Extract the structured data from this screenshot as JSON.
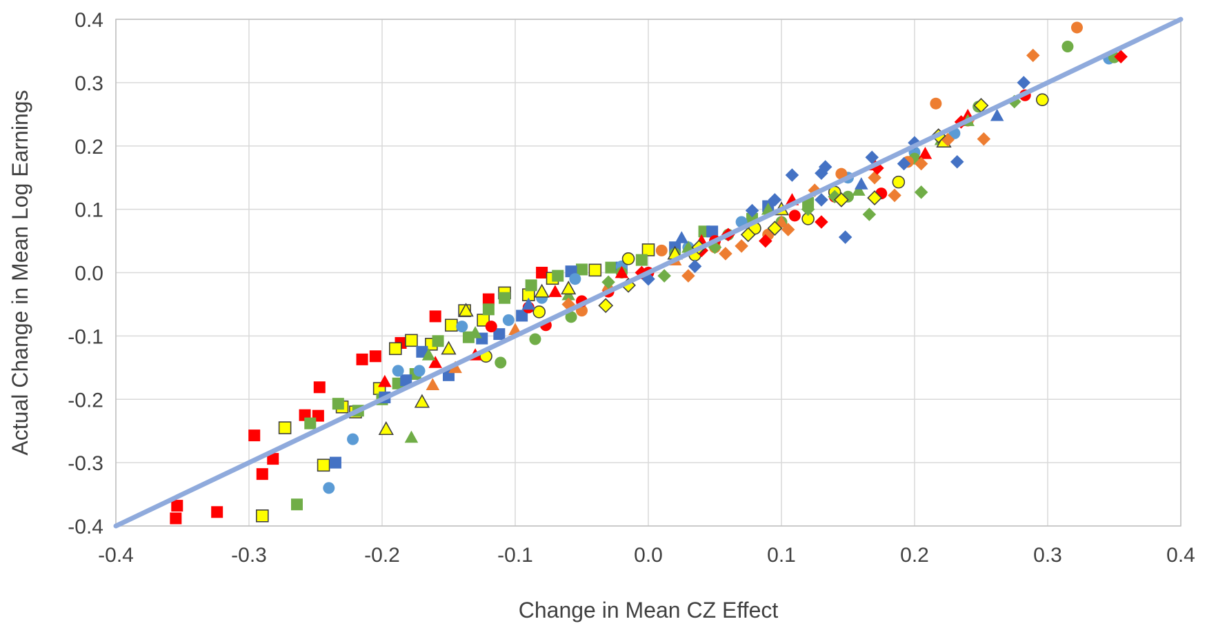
{
  "chart_data": {
    "type": "scatter",
    "title": "",
    "xlabel": "Change in Mean CZ Effect",
    "ylabel": "Actual Change in Mean Log Earnings",
    "xlim": [
      -0.4,
      0.4
    ],
    "ylim": [
      -0.4,
      0.4
    ],
    "x_ticks": [
      "-0.4",
      "-0.3",
      "-0.2",
      "-0.1",
      "0.0",
      "0.1",
      "0.2",
      "0.3",
      "0.4"
    ],
    "y_ticks": [
      "-0.4",
      "-0.3",
      "-0.2",
      "-0.1",
      "0.0",
      "0.1",
      "0.2",
      "0.3",
      "0.4"
    ],
    "grid": true,
    "legend": "none",
    "reference_line": {
      "x": [
        -0.4,
        0.4
      ],
      "y": [
        -0.4,
        0.4
      ],
      "color": "#8FAADC"
    },
    "colors": {
      "red": "#FF0000",
      "orange": "#ED7D31",
      "green": "#70AD47",
      "blue": "#4472C4",
      "lightblue": "#5B9BD5",
      "yellow": "#FFFF00"
    },
    "series": [
      {
        "color": "red",
        "marker": "square",
        "points": [
          [
            -0.355,
            -0.388
          ],
          [
            -0.354,
            -0.368
          ],
          [
            -0.324,
            -0.378
          ],
          [
            -0.296,
            -0.257
          ],
          [
            -0.29,
            -0.318
          ],
          [
            -0.282,
            -0.294
          ],
          [
            -0.258,
            -0.225
          ],
          [
            -0.248,
            -0.226
          ],
          [
            -0.247,
            -0.181
          ],
          [
            -0.215,
            -0.137
          ],
          [
            -0.205,
            -0.132
          ],
          [
            -0.186,
            -0.111
          ],
          [
            -0.16,
            -0.069
          ],
          [
            -0.12,
            -0.042
          ],
          [
            -0.08,
            0.0
          ]
        ]
      },
      {
        "color": "yellow",
        "marker": "square",
        "points": [
          [
            -0.29,
            -0.384
          ],
          [
            -0.273,
            -0.245
          ],
          [
            -0.244,
            -0.304
          ],
          [
            -0.23,
            -0.212
          ],
          [
            -0.22,
            -0.22
          ],
          [
            -0.202,
            -0.183
          ],
          [
            -0.19,
            -0.12
          ],
          [
            -0.178,
            -0.107
          ],
          [
            -0.163,
            -0.113
          ],
          [
            -0.148,
            -0.083
          ],
          [
            -0.138,
            -0.06
          ],
          [
            -0.124,
            -0.075
          ],
          [
            -0.108,
            -0.032
          ],
          [
            -0.09,
            -0.035
          ],
          [
            -0.072,
            -0.009
          ],
          [
            -0.04,
            0.004
          ],
          [
            0.0,
            0.036
          ]
        ]
      },
      {
        "color": "green",
        "marker": "square",
        "points": [
          [
            -0.264,
            -0.366
          ],
          [
            -0.254,
            -0.238
          ],
          [
            -0.233,
            -0.207
          ],
          [
            -0.218,
            -0.218
          ],
          [
            -0.2,
            -0.2
          ],
          [
            -0.188,
            -0.175
          ],
          [
            -0.175,
            -0.16
          ],
          [
            -0.158,
            -0.108
          ],
          [
            -0.135,
            -0.102
          ],
          [
            -0.12,
            -0.058
          ],
          [
            -0.108,
            -0.04
          ],
          [
            -0.088,
            -0.02
          ],
          [
            -0.068,
            -0.005
          ],
          [
            -0.05,
            0.005
          ],
          [
            -0.028,
            0.008
          ],
          [
            -0.005,
            0.02
          ],
          [
            0.042,
            0.065
          ],
          [
            0.078,
            0.085
          ],
          [
            0.12,
            0.11
          ]
        ]
      },
      {
        "color": "blue",
        "marker": "square",
        "points": [
          [
            -0.235,
            -0.3
          ],
          [
            -0.198,
            -0.197
          ],
          [
            -0.182,
            -0.17
          ],
          [
            -0.17,
            -0.125
          ],
          [
            -0.15,
            -0.162
          ],
          [
            -0.125,
            -0.104
          ],
          [
            -0.112,
            -0.097
          ],
          [
            -0.095,
            -0.068
          ],
          [
            -0.058,
            0.002
          ],
          [
            -0.02,
            0.008
          ],
          [
            0.02,
            0.04
          ],
          [
            0.048,
            0.065
          ],
          [
            0.09,
            0.105
          ]
        ]
      },
      {
        "color": "lightblue",
        "marker": "circle",
        "points": [
          [
            -0.222,
            -0.263
          ],
          [
            -0.24,
            -0.34
          ],
          [
            -0.188,
            -0.155
          ],
          [
            -0.172,
            -0.155
          ],
          [
            -0.14,
            -0.085
          ],
          [
            -0.105,
            -0.075
          ],
          [
            -0.08,
            -0.04
          ],
          [
            -0.055,
            -0.01
          ],
          [
            -0.02,
            0.01
          ],
          [
            0.03,
            0.04
          ],
          [
            0.07,
            0.08
          ],
          [
            0.15,
            0.15
          ],
          [
            0.2,
            0.19
          ],
          [
            0.23,
            0.22
          ],
          [
            0.346,
            0.338
          ]
        ]
      },
      {
        "color": "green",
        "marker": "circle",
        "points": [
          [
            -0.111,
            -0.142
          ],
          [
            -0.085,
            -0.105
          ],
          [
            -0.058,
            -0.07
          ],
          [
            -0.02,
            0.0
          ],
          [
            0.02,
            0.03
          ],
          [
            0.06,
            0.06
          ],
          [
            0.1,
            0.08
          ],
          [
            0.15,
            0.12
          ],
          [
            0.2,
            0.18
          ],
          [
            0.248,
            0.262
          ],
          [
            0.315,
            0.357
          ],
          [
            0.35,
            0.34
          ]
        ]
      },
      {
        "color": "orange",
        "marker": "circle",
        "points": [
          [
            -0.05,
            -0.06
          ],
          [
            0.01,
            0.035
          ],
          [
            0.05,
            0.04
          ],
          [
            0.09,
            0.06
          ],
          [
            0.145,
            0.156
          ],
          [
            0.195,
            0.175
          ],
          [
            0.216,
            0.267
          ],
          [
            0.24,
            0.24
          ],
          [
            0.322,
            0.387
          ]
        ]
      },
      {
        "color": "red",
        "marker": "circle",
        "points": [
          [
            -0.118,
            -0.085
          ],
          [
            -0.09,
            -0.055
          ],
          [
            -0.077,
            -0.083
          ],
          [
            -0.05,
            -0.045
          ],
          [
            -0.03,
            -0.03
          ],
          [
            0.0,
            0.0
          ],
          [
            0.05,
            0.05
          ],
          [
            0.11,
            0.09
          ],
          [
            0.14,
            0.12
          ],
          [
            0.175,
            0.125
          ],
          [
            0.283,
            0.28
          ]
        ]
      },
      {
        "color": "yellow",
        "marker": "circle",
        "points": [
          [
            -0.122,
            -0.132
          ],
          [
            -0.082,
            -0.062
          ],
          [
            -0.015,
            0.022
          ],
          [
            0.035,
            0.028
          ],
          [
            0.08,
            0.07
          ],
          [
            0.12,
            0.085
          ],
          [
            0.14,
            0.127
          ],
          [
            0.188,
            0.143
          ],
          [
            0.296,
            0.273
          ]
        ]
      },
      {
        "color": "red",
        "marker": "triangle",
        "points": [
          [
            -0.198,
            -0.172
          ],
          [
            -0.16,
            -0.142
          ],
          [
            -0.13,
            -0.13
          ],
          [
            -0.07,
            -0.03
          ],
          [
            -0.02,
            0.0
          ],
          [
            0.04,
            0.05
          ],
          [
            0.108,
            0.115
          ],
          [
            0.17,
            0.17
          ],
          [
            0.208,
            0.188
          ],
          [
            0.24,
            0.248
          ]
        ]
      },
      {
        "color": "green",
        "marker": "triangle",
        "points": [
          [
            -0.178,
            -0.26
          ],
          [
            -0.165,
            -0.13
          ],
          [
            -0.13,
            -0.095
          ],
          [
            -0.06,
            -0.035
          ],
          [
            0.03,
            0.04
          ],
          [
            0.09,
            0.1
          ],
          [
            0.158,
            0.13
          ],
          [
            0.22,
            0.21
          ],
          [
            0.24,
            0.24
          ]
        ]
      },
      {
        "color": "orange",
        "marker": "triangle",
        "points": [
          [
            -0.162,
            -0.177
          ],
          [
            -0.145,
            -0.15
          ],
          [
            -0.1,
            -0.09
          ],
          [
            -0.03,
            -0.02
          ],
          [
            0.02,
            0.02
          ],
          [
            0.1,
            0.08
          ]
        ]
      },
      {
        "color": "blue",
        "marker": "triangle",
        "points": [
          [
            -0.09,
            -0.05
          ],
          [
            0.025,
            0.055
          ],
          [
            0.16,
            0.14
          ],
          [
            0.262,
            0.248
          ]
        ]
      },
      {
        "color": "yellow",
        "marker": "triangle",
        "points": [
          [
            -0.197,
            -0.247
          ],
          [
            -0.17,
            -0.204
          ],
          [
            -0.15,
            -0.12
          ],
          [
            -0.137,
            -0.06
          ],
          [
            -0.08,
            -0.03
          ],
          [
            -0.06,
            -0.025
          ],
          [
            0.02,
            0.03
          ],
          [
            0.1,
            0.1
          ],
          [
            0.222,
            0.207
          ]
        ]
      },
      {
        "color": "blue",
        "marker": "diamond",
        "points": [
          [
            0.108,
            0.154
          ],
          [
            0.13,
            0.157
          ],
          [
            0.133,
            0.167
          ],
          [
            0.148,
            0.056
          ],
          [
            0.168,
            0.182
          ],
          [
            0.192,
            0.172
          ],
          [
            0.2,
            0.205
          ],
          [
            0.232,
            0.175
          ],
          [
            0.282,
            0.3
          ],
          [
            0.095,
            0.115
          ],
          [
            0.078,
            0.098
          ],
          [
            0.06,
            0.06
          ],
          [
            0.035,
            0.01
          ],
          [
            0.0,
            -0.01
          ],
          [
            0.13,
            0.115
          ]
        ]
      },
      {
        "color": "orange",
        "marker": "diamond",
        "points": [
          [
            0.289,
            0.343
          ],
          [
            0.252,
            0.211
          ],
          [
            0.225,
            0.21
          ],
          [
            0.205,
            0.172
          ],
          [
            0.185,
            0.122
          ],
          [
            0.17,
            0.15
          ],
          [
            0.125,
            0.13
          ],
          [
            0.105,
            0.068
          ],
          [
            0.07,
            0.042
          ],
          [
            0.058,
            0.03
          ],
          [
            0.03,
            -0.005
          ],
          [
            -0.06,
            -0.05
          ]
        ]
      },
      {
        "color": "green",
        "marker": "diamond",
        "points": [
          [
            0.205,
            0.127
          ],
          [
            0.166,
            0.092
          ],
          [
            0.14,
            0.12
          ],
          [
            0.275,
            0.27
          ],
          [
            0.12,
            0.1
          ],
          [
            0.095,
            0.07
          ],
          [
            0.05,
            0.04
          ],
          [
            0.012,
            -0.005
          ],
          [
            -0.03,
            -0.015
          ]
        ]
      },
      {
        "color": "red",
        "marker": "diamond",
        "points": [
          [
            0.355,
            0.341
          ],
          [
            0.235,
            0.238
          ],
          [
            0.172,
            0.165
          ],
          [
            0.13,
            0.08
          ],
          [
            0.088,
            0.05
          ],
          [
            0.06,
            0.06
          ],
          [
            0.04,
            0.035
          ],
          [
            -0.005,
            0.0
          ]
        ]
      },
      {
        "color": "yellow",
        "marker": "diamond",
        "points": [
          [
            0.25,
            0.264
          ],
          [
            0.218,
            0.216
          ],
          [
            0.17,
            0.118
          ],
          [
            0.145,
            0.115
          ],
          [
            0.095,
            0.07
          ],
          [
            0.075,
            0.06
          ],
          [
            0.038,
            0.04
          ],
          [
            -0.015,
            -0.02
          ],
          [
            -0.032,
            -0.052
          ]
        ]
      }
    ]
  }
}
